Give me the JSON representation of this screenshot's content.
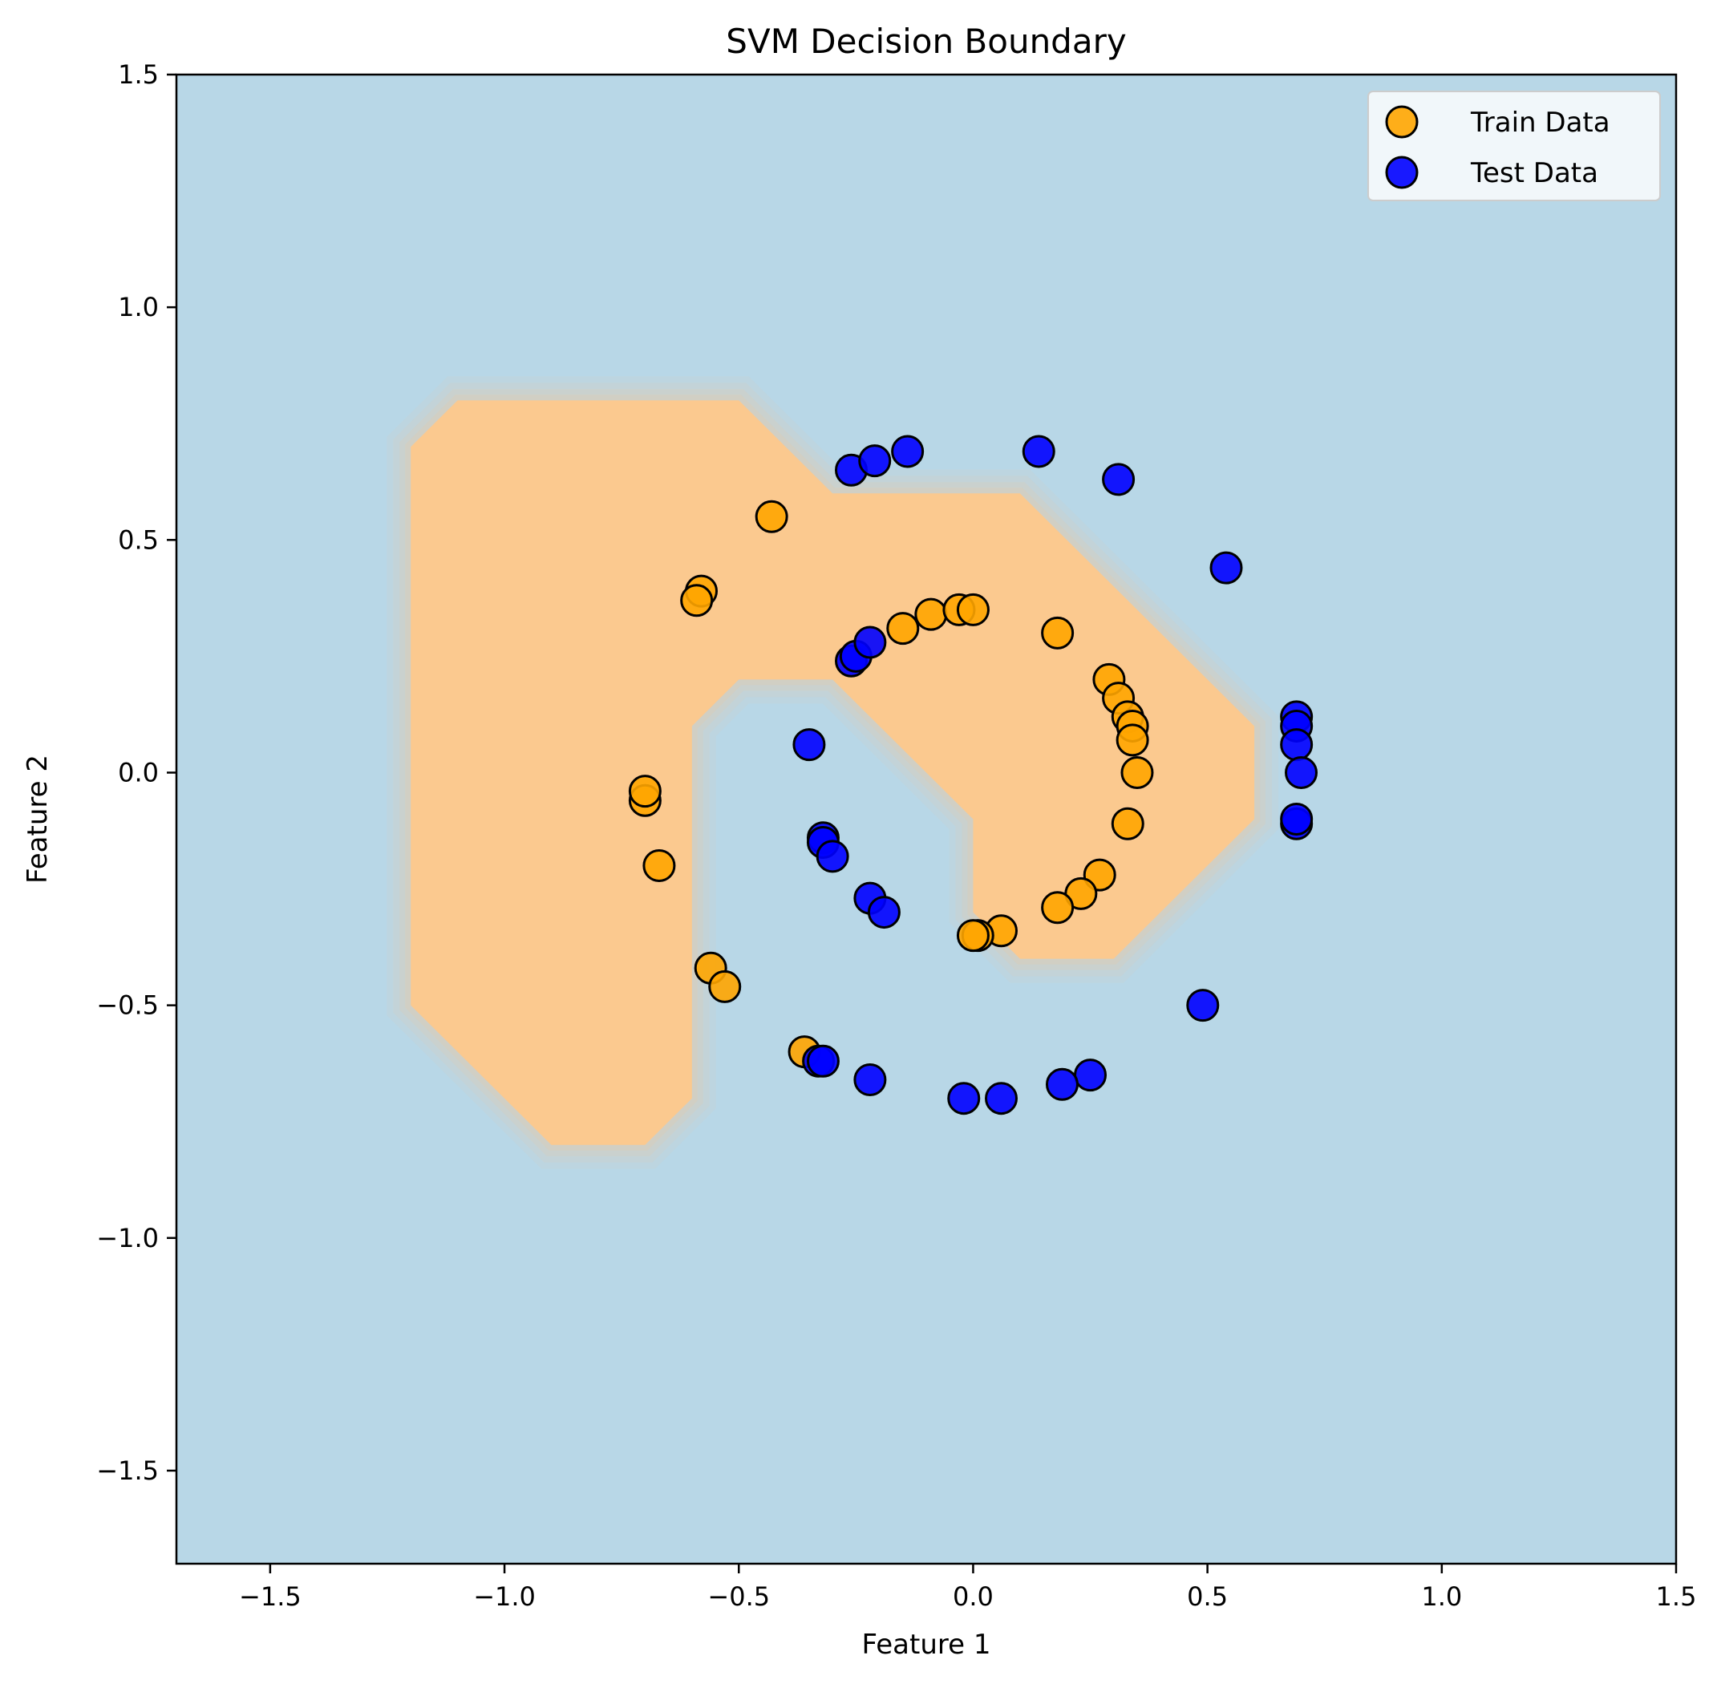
{
  "chart_data": {
    "type": "scatter",
    "title": "SVM Decision Boundary",
    "xlabel": "Feature 1",
    "ylabel": "Feature 2",
    "xlim": [
      -1.7,
      1.5
    ],
    "ylim": [
      -1.7,
      1.5
    ],
    "xticks": [
      -1.5,
      -1.0,
      -0.5,
      0.0,
      0.5,
      1.0,
      1.5
    ],
    "yticks": [
      -1.5,
      -1.0,
      -0.5,
      0.0,
      0.5,
      1.0,
      1.5
    ],
    "xtick_labels": [
      "−1.5",
      "−1.0",
      "−0.5",
      "0.0",
      "0.5",
      "1.0",
      "1.5"
    ],
    "ytick_labels": [
      "−1.5",
      "−1.0",
      "−0.5",
      "0.0",
      "0.5",
      "1.0",
      "1.5"
    ],
    "grid": false,
    "legend_position": "top-right",
    "background_color": "#b8d7e7",
    "region_color": "#fbc98f",
    "decision_region": [
      [
        -1.2,
        0.7
      ],
      [
        -1.1,
        0.8
      ],
      [
        -0.5,
        0.8
      ],
      [
        -0.3,
        0.6
      ],
      [
        0.1,
        0.6
      ],
      [
        0.5,
        0.2
      ],
      [
        0.6,
        0.1
      ],
      [
        0.6,
        -0.1
      ],
      [
        0.3,
        -0.4
      ],
      [
        0.1,
        -0.4
      ],
      [
        0.0,
        -0.3
      ],
      [
        0.0,
        -0.1
      ],
      [
        -0.3,
        0.2
      ],
      [
        -0.5,
        0.2
      ],
      [
        -0.6,
        0.1
      ],
      [
        -0.6,
        -0.7
      ],
      [
        -0.7,
        -0.8
      ],
      [
        -0.9,
        -0.8
      ],
      [
        -1.2,
        -0.5
      ]
    ],
    "series": [
      {
        "name": "Train Data",
        "color": "#ffa500",
        "points": [
          [
            -0.43,
            0.55
          ],
          [
            -0.58,
            0.39
          ],
          [
            -0.59,
            0.37
          ],
          [
            -0.15,
            0.31
          ],
          [
            -0.09,
            0.34
          ],
          [
            -0.03,
            0.35
          ],
          [
            0.0,
            0.35
          ],
          [
            0.18,
            0.3
          ],
          [
            0.29,
            0.2
          ],
          [
            0.31,
            0.16
          ],
          [
            0.33,
            0.12
          ],
          [
            0.34,
            0.1
          ],
          [
            0.34,
            0.07
          ],
          [
            0.35,
            0.0
          ],
          [
            0.33,
            -0.11
          ],
          [
            0.27,
            -0.22
          ],
          [
            0.23,
            -0.26
          ],
          [
            0.18,
            -0.29
          ],
          [
            0.06,
            -0.34
          ],
          [
            0.01,
            -0.35
          ],
          [
            0.0,
            -0.35
          ],
          [
            -0.7,
            -0.06
          ],
          [
            -0.7,
            -0.04
          ],
          [
            -0.67,
            -0.2
          ],
          [
            -0.56,
            -0.42
          ],
          [
            -0.53,
            -0.46
          ],
          [
            -0.36,
            -0.6
          ]
        ]
      },
      {
        "name": "Test Data",
        "color": "#0000ff",
        "points": [
          [
            -0.26,
            0.65
          ],
          [
            -0.21,
            0.67
          ],
          [
            -0.14,
            0.69
          ],
          [
            0.14,
            0.69
          ],
          [
            0.31,
            0.63
          ],
          [
            0.54,
            0.44
          ],
          [
            -0.26,
            0.24
          ],
          [
            -0.25,
            0.25
          ],
          [
            -0.22,
            0.28
          ],
          [
            -0.35,
            0.06
          ],
          [
            -0.32,
            -0.14
          ],
          [
            -0.32,
            -0.15
          ],
          [
            -0.3,
            -0.18
          ],
          [
            -0.22,
            -0.27
          ],
          [
            -0.19,
            -0.3
          ],
          [
            0.69,
            0.12
          ],
          [
            0.69,
            0.1
          ],
          [
            0.69,
            0.06
          ],
          [
            0.7,
            0.0
          ],
          [
            0.69,
            -0.11
          ],
          [
            0.69,
            -0.1
          ],
          [
            0.49,
            -0.5
          ],
          [
            0.25,
            -0.65
          ],
          [
            0.19,
            -0.67
          ],
          [
            0.06,
            -0.7
          ],
          [
            -0.02,
            -0.7
          ],
          [
            -0.22,
            -0.66
          ],
          [
            -0.33,
            -0.62
          ],
          [
            -0.32,
            -0.62
          ]
        ]
      }
    ]
  }
}
